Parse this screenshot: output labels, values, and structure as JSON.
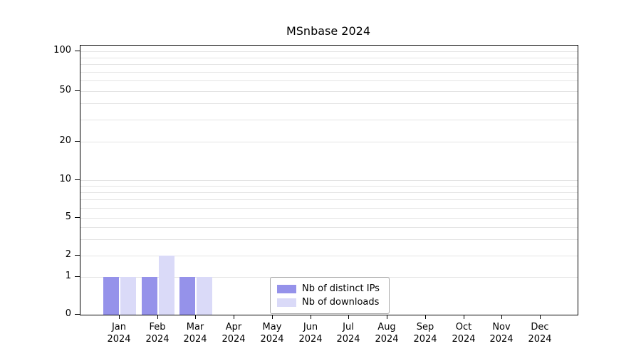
{
  "chart_data": {
    "type": "bar",
    "title": "MSnbase 2024",
    "categories": [
      "Jan",
      "Feb",
      "Mar",
      "Apr",
      "May",
      "Jun",
      "Jul",
      "Aug",
      "Sep",
      "Oct",
      "Nov",
      "Dec"
    ],
    "year_labels": [
      "2024",
      "2024",
      "2024",
      "2024",
      "2024",
      "2024",
      "2024",
      "2024",
      "2024",
      "2024",
      "2024",
      "2024"
    ],
    "series": [
      {
        "name": "Nb of distinct IPs",
        "color": "#9592ea",
        "values": [
          1,
          1,
          1,
          0,
          0,
          0,
          0,
          0,
          0,
          0,
          0,
          0
        ]
      },
      {
        "name": "Nb of downloads",
        "color": "#dadaf8",
        "values": [
          1,
          2,
          1,
          0,
          0,
          0,
          0,
          0,
          0,
          0,
          0,
          0
        ]
      }
    ],
    "y_ticks": [
      0,
      1,
      2,
      5,
      10,
      20,
      50,
      100
    ],
    "y_scale": "log-like",
    "ylim": [
      0,
      110
    ],
    "minor_grid_values": [
      1,
      2,
      3,
      4,
      5,
      6,
      7,
      8,
      9,
      10,
      20,
      30,
      40,
      50,
      60,
      70,
      80,
      90,
      100
    ],
    "grid": "on",
    "xlabel": "",
    "ylabel": "",
    "legend": {
      "position": "bottom-center",
      "entries": [
        "Nb of distinct IPs",
        "Nb of downloads"
      ]
    },
    "colors": {
      "grid": "#e4e4e4",
      "axis": "#000000",
      "legend_border": "#a9a9a9",
      "background": "#ffffff"
    }
  }
}
